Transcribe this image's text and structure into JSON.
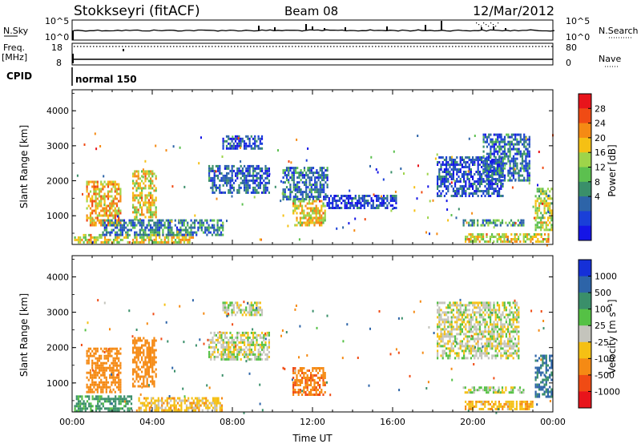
{
  "header": {
    "station": "Stokkseyri (fitACF)",
    "beam": "Beam 08",
    "date": "12/Mar/2012"
  },
  "nsky_panel": {
    "left_label": "N.Sky",
    "left_ticks": [
      "10^5",
      "10^0"
    ],
    "right_ticks": [
      "10^5",
      "10^0"
    ],
    "right_label": "N.Search"
  },
  "freq_panel": {
    "left_label_1": "Freq.",
    "left_label_2": "[MHz]",
    "left_ticks": [
      "18",
      "8"
    ],
    "right_ticks": [
      "80",
      "0"
    ],
    "right_label": "Nave"
  },
  "cpid": {
    "label": "CPID",
    "value": "normal 150"
  },
  "chart_data": [
    {
      "type": "heatmap",
      "name": "power",
      "ylabel": "Slant Range [km]",
      "xlabel": "Time UT",
      "x_ticks": [
        "00:00",
        "04:00",
        "08:00",
        "12:00",
        "16:00",
        "20:00",
        "00:00"
      ],
      "xlim_hours": [
        0,
        24
      ],
      "y_ticks": [
        1000,
        2000,
        3000,
        4000
      ],
      "ylim": [
        180,
        4600
      ],
      "colorbar": {
        "label": "Power [dB]",
        "ticks": [
          "28",
          "24",
          "20",
          "16",
          "12",
          "8",
          "4"
        ],
        "colors": [
          "#e8141b",
          "#f04b14",
          "#f58a14",
          "#f5c014",
          "#9ed44a",
          "#5cc04f",
          "#3a8f6a",
          "#2d64a8",
          "#1a3fd8",
          "#1515e6"
        ]
      },
      "regions": [
        {
          "t0": 0.1,
          "t1": 6.0,
          "r0": 240,
          "r1": 480,
          "val": 20
        },
        {
          "t0": 0.7,
          "t1": 2.4,
          "r0": 750,
          "r1": 2000,
          "val": 22
        },
        {
          "t0": 3.0,
          "t1": 4.2,
          "r0": 900,
          "r1": 2300,
          "val": 20
        },
        {
          "t0": 1.5,
          "t1": 7.5,
          "r0": 420,
          "r1": 900,
          "val": 9
        },
        {
          "t0": 6.8,
          "t1": 9.8,
          "r0": 1650,
          "r1": 2450,
          "val": 7
        },
        {
          "t0": 7.5,
          "t1": 9.5,
          "r0": 2900,
          "r1": 3300,
          "val": 6
        },
        {
          "t0": 10.5,
          "t1": 12.7,
          "r0": 1500,
          "r1": 2400,
          "val": 8
        },
        {
          "t0": 11.0,
          "t1": 12.6,
          "r0": 700,
          "r1": 1450,
          "val": 20
        },
        {
          "t0": 12.7,
          "t1": 16.2,
          "r0": 1250,
          "r1": 1600,
          "val": 5
        },
        {
          "t0": 18.2,
          "t1": 21.5,
          "r0": 1600,
          "r1": 2700,
          "val": 6
        },
        {
          "t0": 20.5,
          "t1": 22.8,
          "r0": 2000,
          "r1": 3350,
          "val": 8
        },
        {
          "t0": 19.5,
          "t1": 22.5,
          "r0": 700,
          "r1": 900,
          "val": 12
        },
        {
          "t0": 19.6,
          "t1": 23.8,
          "r0": 250,
          "r1": 500,
          "val": 20
        },
        {
          "t0": 23.1,
          "t1": 23.95,
          "r0": 600,
          "r1": 1800,
          "val": 18
        }
      ]
    },
    {
      "type": "heatmap",
      "name": "velocity",
      "ylabel": "Slant Range [km]",
      "xlabel": "Time UT",
      "x_ticks": [
        "00:00",
        "04:00",
        "08:00",
        "12:00",
        "16:00",
        "20:00",
        "00:00"
      ],
      "xlim_hours": [
        0,
        24
      ],
      "y_ticks": [
        1000,
        2000,
        3000,
        4000
      ],
      "ylim": [
        180,
        4600
      ],
      "colorbar": {
        "label": "Velocity [m s⁻¹]",
        "ticks": [
          "1000",
          "500",
          "100",
          "25",
          "-25",
          "-100",
          "-500",
          "-1000"
        ],
        "colors": [
          "#1530d8",
          "#2d64a8",
          "#3a8f6a",
          "#55c145",
          "#c4c4bc",
          "#f5c014",
          "#f58a14",
          "#f04b14",
          "#e8141b"
        ]
      },
      "regions": [
        {
          "t0": 0.1,
          "t1": 3.0,
          "r0": 240,
          "r1": 650,
          "val": 150
        },
        {
          "t0": 0.7,
          "t1": 2.4,
          "r0": 750,
          "r1": 2000,
          "val": -300
        },
        {
          "t0": 3.0,
          "t1": 4.2,
          "r0": 900,
          "r1": 2300,
          "val": -300
        },
        {
          "t0": 3.3,
          "t1": 7.5,
          "r0": 240,
          "r1": 600,
          "val": -60
        },
        {
          "t0": 6.8,
          "t1": 9.8,
          "r0": 1650,
          "r1": 2450,
          "val": 0
        },
        {
          "t0": 7.5,
          "t1": 9.5,
          "r0": 2900,
          "r1": 3300,
          "val": 0
        },
        {
          "t0": 11.0,
          "t1": 12.6,
          "r0": 700,
          "r1": 1450,
          "val": -400
        },
        {
          "t0": 18.2,
          "t1": 22.3,
          "r0": 1700,
          "r1": 3300,
          "val": 0
        },
        {
          "t0": 19.5,
          "t1": 22.5,
          "r0": 700,
          "r1": 900,
          "val": 0
        },
        {
          "t0": 19.6,
          "t1": 23.0,
          "r0": 250,
          "r1": 500,
          "val": -80
        },
        {
          "t0": 23.1,
          "t1": 23.95,
          "r0": 600,
          "r1": 1800,
          "val": 600
        }
      ]
    }
  ]
}
